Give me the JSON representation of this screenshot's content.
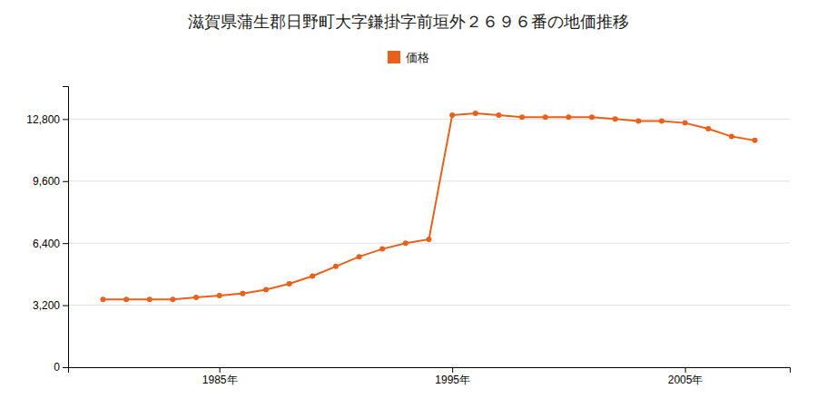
{
  "chart_data": {
    "type": "line",
    "title": "滋賀県蒲生郡日野町大字鎌掛字前垣外２６９６番の地価推移",
    "x": [
      1980,
      1981,
      1982,
      1983,
      1984,
      1985,
      1986,
      1987,
      1988,
      1989,
      1990,
      1991,
      1992,
      1993,
      1994,
      1995,
      1996,
      1997,
      1998,
      1999,
      2000,
      2001,
      2002,
      2003,
      2004,
      2005,
      2006,
      2007,
      2008
    ],
    "series": [
      {
        "name": "価格",
        "color": "#e8601a",
        "marker": "circle",
        "values": [
          3500,
          3500,
          3500,
          3500,
          3600,
          3700,
          3800,
          4000,
          4300,
          4700,
          5200,
          5700,
          6100,
          6400,
          6600,
          13000,
          13100,
          13000,
          12900,
          12900,
          12900,
          12900,
          12800,
          12700,
          12700,
          12600,
          12300,
          11900,
          11700
        ]
      }
    ],
    "xlim": [
      1978.5,
      2009.5
    ],
    "xticks": [
      {
        "value": 1985,
        "label": "1985年"
      },
      {
        "value": 1995,
        "label": "1995年"
      },
      {
        "value": 2005,
        "label": "2005年"
      }
    ],
    "ylim": [
      0,
      14500
    ],
    "yticks": [
      0,
      {
        "value": 3200,
        "label": "3,200"
      },
      {
        "value": 6400,
        "label": "6,400"
      },
      {
        "value": 9600,
        "label": "9,600"
      },
      {
        "value": 12800,
        "label": "12,800"
      }
    ],
    "grid": true,
    "legend": "top"
  }
}
